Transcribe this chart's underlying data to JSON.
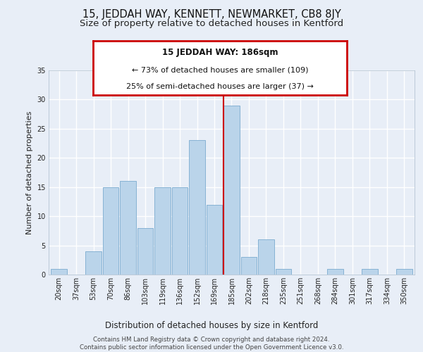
{
  "title": "15, JEDDAH WAY, KENNETT, NEWMARKET, CB8 8JY",
  "subtitle": "Size of property relative to detached houses in Kentford",
  "xlabel": "Distribution of detached houses by size in Kentford",
  "ylabel": "Number of detached properties",
  "categories": [
    "20sqm",
    "37sqm",
    "53sqm",
    "70sqm",
    "86sqm",
    "103sqm",
    "119sqm",
    "136sqm",
    "152sqm",
    "169sqm",
    "185sqm",
    "202sqm",
    "218sqm",
    "235sqm",
    "251sqm",
    "268sqm",
    "284sqm",
    "301sqm",
    "317sqm",
    "334sqm",
    "350sqm"
  ],
  "values": [
    1,
    0,
    4,
    15,
    16,
    8,
    15,
    15,
    23,
    12,
    29,
    3,
    6,
    1,
    0,
    0,
    1,
    0,
    1,
    0,
    1
  ],
  "highlight_index": 10,
  "bar_color": "#bad4ea",
  "bar_edge_color": "#7aabcf",
  "highlight_line_color": "#cc0000",
  "ylim": [
    0,
    35
  ],
  "yticks": [
    0,
    5,
    10,
    15,
    20,
    25,
    30,
    35
  ],
  "annotation_title": "15 JEDDAH WAY: 186sqm",
  "annotation_line1": "← 73% of detached houses are smaller (109)",
  "annotation_line2": "25% of semi-detached houses are larger (37) →",
  "annotation_box_color": "#ffffff",
  "annotation_border_color": "#cc0000",
  "footer_line1": "Contains HM Land Registry data © Crown copyright and database right 2024.",
  "footer_line2": "Contains public sector information licensed under the Open Government Licence v3.0.",
  "bg_color": "#e8eef7",
  "grid_color": "#ffffff",
  "title_fontsize": 10.5,
  "subtitle_fontsize": 9.5,
  "axis_label_fontsize": 8.5,
  "tick_fontsize": 7,
  "ylabel_fontsize": 8
}
